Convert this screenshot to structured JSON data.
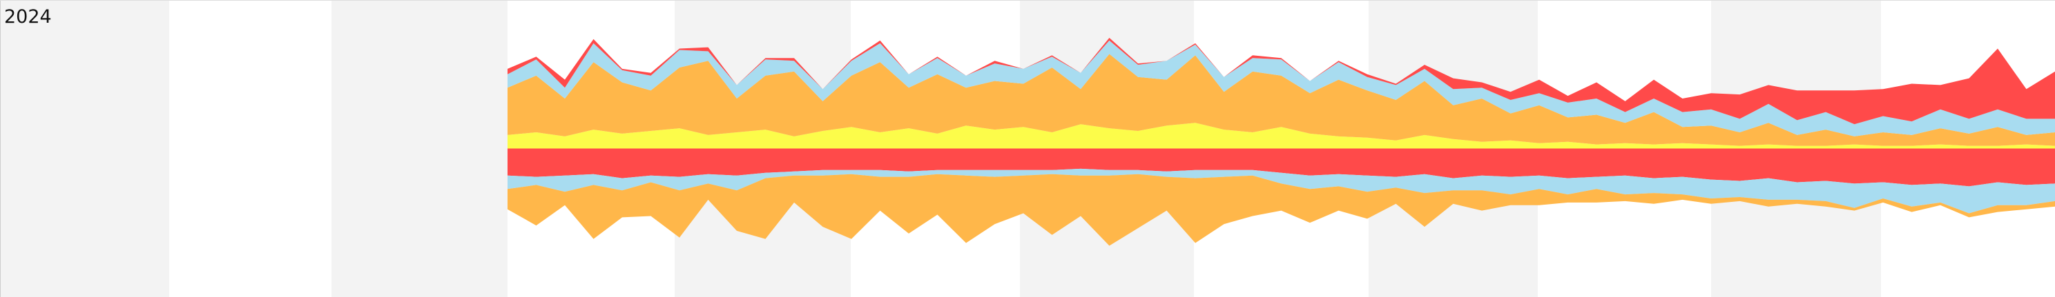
{
  "chart_data": {
    "type": "mirrored-area",
    "title": "2024",
    "ylim": [
      -110,
      110
    ],
    "series": [
      {
        "color": "#fcfc4a",
        "values": [
          10,
          12,
          9,
          14,
          11,
          13,
          15,
          10,
          12,
          14,
          9,
          13,
          16,
          12,
          15,
          11,
          17,
          14,
          16,
          12,
          18,
          15,
          13,
          17,
          19,
          14,
          12,
          16,
          11,
          9,
          8,
          6,
          10,
          7,
          5,
          6,
          4,
          5,
          3,
          4,
          3,
          4,
          3,
          2,
          3,
          2,
          2,
          3,
          2,
          2,
          3,
          2,
          2,
          3,
          2
        ]
      },
      {
        "color": "#ffb74a",
        "values": [
          35,
          42,
          28,
          50,
          38,
          30,
          45,
          55,
          25,
          40,
          48,
          22,
          38,
          52,
          30,
          44,
          28,
          36,
          32,
          48,
          26,
          55,
          40,
          34,
          50,
          28,
          45,
          38,
          30,
          42,
          35,
          30,
          40,
          25,
          32,
          20,
          28,
          18,
          22,
          15,
          24,
          12,
          14,
          10,
          16,
          8,
          12,
          6,
          10,
          8,
          12,
          9,
          14,
          7,
          10
        ]
      },
      {
        "color": "#a8dcf0",
        "values": [
          10,
          12,
          8,
          14,
          9,
          11,
          13,
          7,
          10,
          12,
          8,
          9,
          11,
          14,
          10,
          12,
          9,
          13,
          11,
          8,
          12,
          10,
          9,
          14,
          8,
          11,
          10,
          12,
          9,
          13,
          10,
          11,
          9,
          12,
          8,
          10,
          9,
          11,
          12,
          8,
          10,
          11,
          12,
          10,
          14,
          11,
          13,
          9,
          12,
          10,
          14,
          11,
          13,
          12,
          10
        ]
      },
      {
        "color": "#ff4a4a",
        "values": [
          4,
          2,
          6,
          3,
          1,
          2,
          1,
          3,
          0,
          1,
          2,
          0,
          1,
          2,
          0,
          1,
          0,
          2,
          0,
          1,
          0,
          2,
          1,
          0,
          1,
          0,
          2,
          1,
          0,
          1,
          2,
          1,
          3,
          8,
          4,
          6,
          10,
          5,
          12,
          8,
          14,
          10,
          12,
          18,
          14,
          22,
          16,
          25,
          20,
          28,
          18,
          30,
          45,
          22,
          35
        ]
      },
      {
        "color": "#ff4a4a",
        "values": [
          -20,
          -21,
          -20,
          -19,
          -22,
          -20,
          -21,
          -19,
          -20,
          -18,
          -17,
          -16,
          -16,
          -16,
          -17,
          -16,
          -16,
          -16,
          -16,
          -16,
          -15,
          -16,
          -16,
          -17,
          -16,
          -16,
          -16,
          -18,
          -20,
          -19,
          -20,
          -21,
          -19,
          -22,
          -20,
          -21,
          -20,
          -22,
          -21,
          -20,
          -22,
          -21,
          -23,
          -24,
          -22,
          -25,
          -24,
          -26,
          -25,
          -27,
          -26,
          -28,
          -25,
          -27,
          -26
        ]
      },
      {
        "color": "#a8dcf0",
        "values": [
          -10,
          -6,
          -12,
          -8,
          -9,
          -5,
          -10,
          -7,
          -11,
          -4,
          -3,
          -4,
          -3,
          -5,
          -4,
          -3,
          -4,
          -5,
          -4,
          -3,
          -5,
          -4,
          -3,
          -4,
          -6,
          -5,
          -4,
          -8,
          -10,
          -9,
          -12,
          -8,
          -14,
          -9,
          -11,
          -13,
          -10,
          -12,
          -9,
          -14,
          -11,
          -13,
          -14,
          -12,
          -16,
          -13,
          -15,
          -18,
          -12,
          -16,
          -14,
          -20,
          -17,
          -15,
          -13
        ]
      },
      {
        "color": "#ffb74a",
        "values": [
          -15,
          -30,
          -10,
          -40,
          -20,
          -25,
          -35,
          -12,
          -30,
          -45,
          -20,
          -38,
          -48,
          -25,
          -42,
          -30,
          -50,
          -35,
          -28,
          -45,
          -30,
          -52,
          -40,
          -25,
          -48,
          -35,
          -30,
          -20,
          -25,
          -18,
          -20,
          -12,
          -25,
          -10,
          -15,
          -8,
          -12,
          -6,
          -10,
          -5,
          -8,
          -4,
          -4,
          -3,
          -5,
          -3,
          -4,
          -2,
          -3,
          -4,
          -2,
          -3,
          -5,
          -3,
          -4
        ]
      }
    ]
  }
}
